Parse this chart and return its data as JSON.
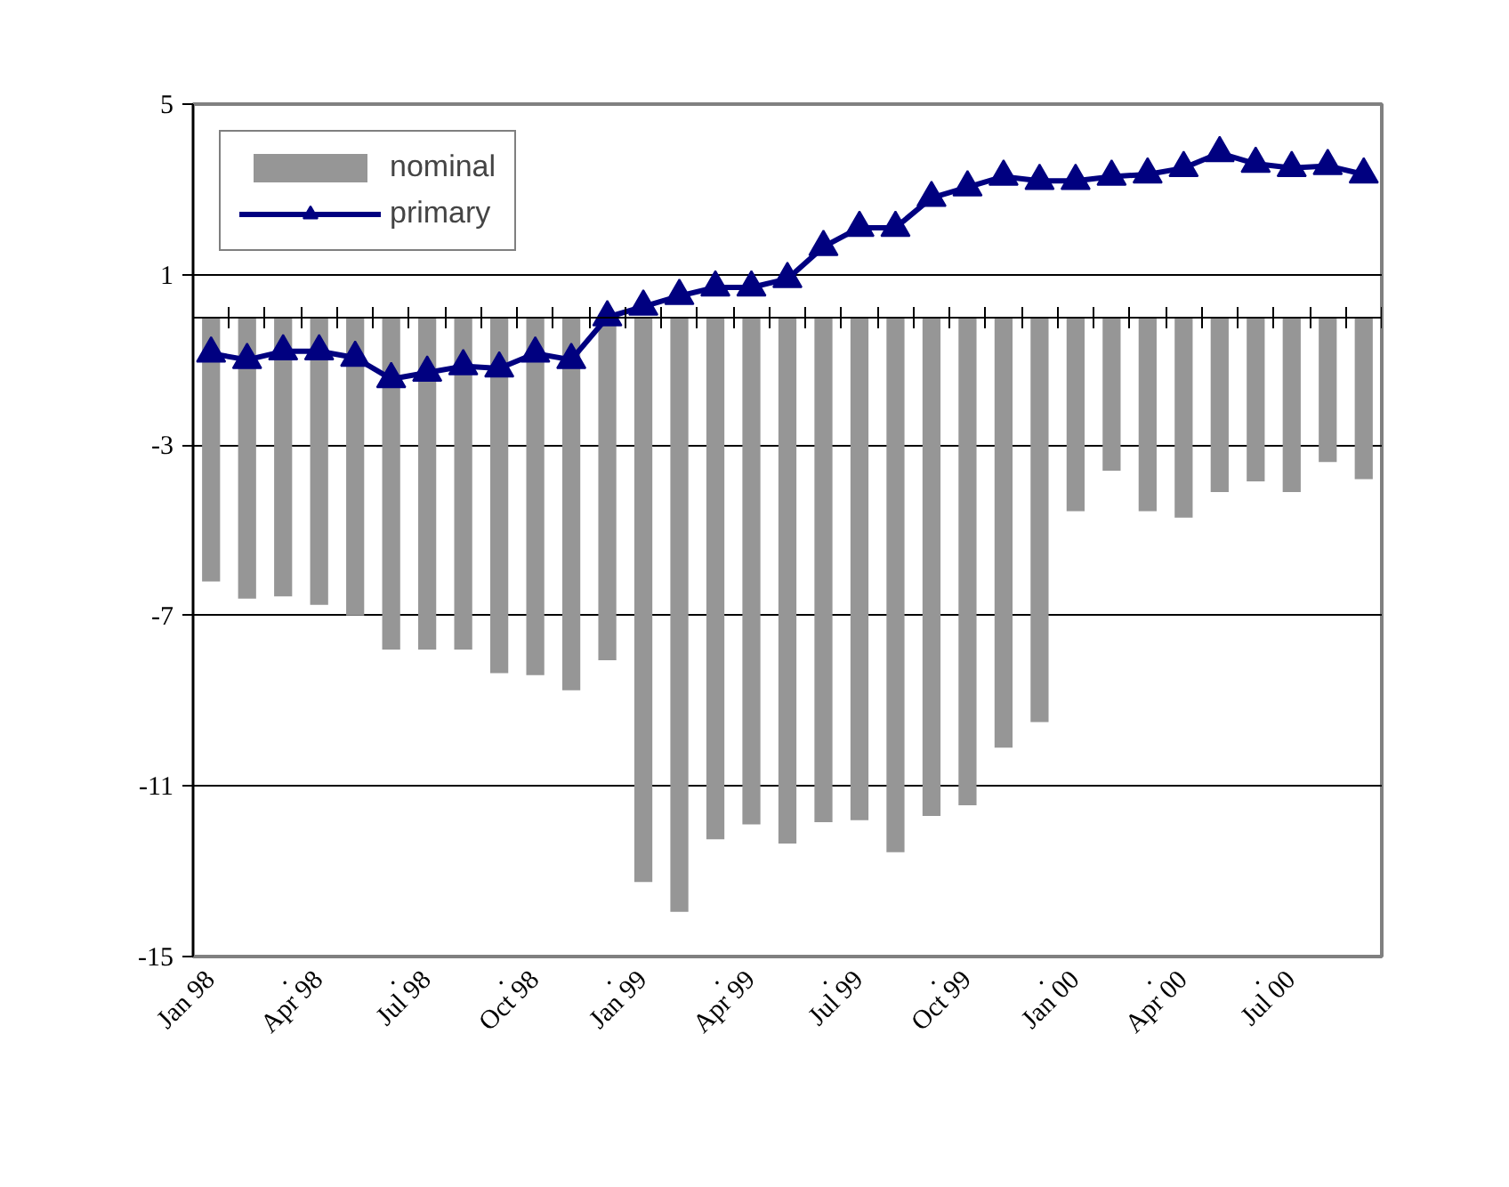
{
  "chart_data": {
    "type": "bar",
    "categories": [
      "Jan 98",
      null,
      ".",
      "Apr 98",
      null,
      ".",
      "Jul 98",
      null,
      ".",
      "Oct 98",
      null,
      ".",
      "Jan 99",
      null,
      ".",
      "Apr 99",
      null,
      ".",
      "Jul 99",
      null,
      ".",
      "Oct 99",
      null,
      ".",
      "Jan 00",
      null,
      ".",
      "Apr 00",
      null,
      ".",
      "Jul 00",
      null,
      null
    ],
    "series": [
      {
        "name": "nominal",
        "color": "#969696",
        "values": [
          -6.2,
          -6.6,
          -6.55,
          -6.75,
          -7.0,
          -7.8,
          -7.8,
          -7.8,
          -8.35,
          -8.4,
          -8.75,
          -8.05,
          -13.25,
          -13.95,
          -12.25,
          -11.9,
          -12.35,
          -11.85,
          -11.8,
          -12.55,
          -11.7,
          -11.45,
          -10.1,
          -9.5,
          -4.55,
          -3.6,
          -4.55,
          -4.7,
          -4.1,
          -3.85,
          -4.1,
          -3.4,
          -3.8
        ]
      },
      {
        "name": "primary",
        "type": "line",
        "color": "#000080",
        "marker": "triangle",
        "values": [
          -0.85,
          -1.0,
          -0.8,
          -0.8,
          -0.95,
          -1.45,
          -1.3,
          -1.15,
          -1.2,
          -0.85,
          -1.0,
          0.0,
          0.25,
          0.5,
          0.7,
          0.7,
          0.9,
          1.65,
          2.1,
          2.1,
          2.8,
          3.05,
          3.3,
          3.2,
          3.2,
          3.3,
          3.35,
          3.5,
          3.85,
          3.6,
          3.5,
          3.55,
          3.35
        ]
      }
    ],
    "ylim": [
      -15,
      5
    ],
    "yticks": [
      -15,
      -11,
      -7,
      -3,
      1,
      5
    ],
    "grid": "y",
    "legend": "top left"
  }
}
